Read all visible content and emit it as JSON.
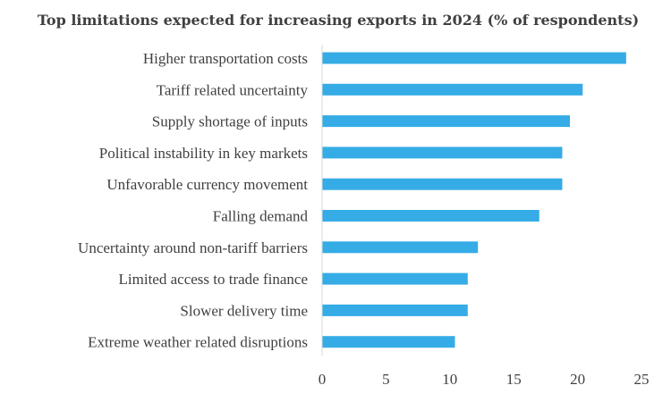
{
  "chart_data": {
    "type": "bar",
    "orientation": "horizontal",
    "title": "Top limitations expected for increasing exports in 2024 (% of respondents)",
    "xlabel": "",
    "ylabel": "",
    "categories": [
      "Higher transportation costs",
      "Tariff related uncertainty",
      "Supply shortage of inputs",
      "Political instability in key markets",
      "Unfavorable currency movement",
      "Falling demand",
      "Uncertainty around non-tariff barriers",
      "Limited access to trade finance",
      "Slower delivery time",
      "Extreme weather related disruptions"
    ],
    "values": [
      23.8,
      20.4,
      19.4,
      18.8,
      18.8,
      17.0,
      12.2,
      11.4,
      11.4,
      10.4
    ],
    "xlim": [
      0,
      25
    ],
    "xticks": [
      "0",
      "5",
      "10",
      "15",
      "20",
      "25"
    ],
    "bar_color": "#35ACE5",
    "grid": false,
    "legend": "none"
  }
}
